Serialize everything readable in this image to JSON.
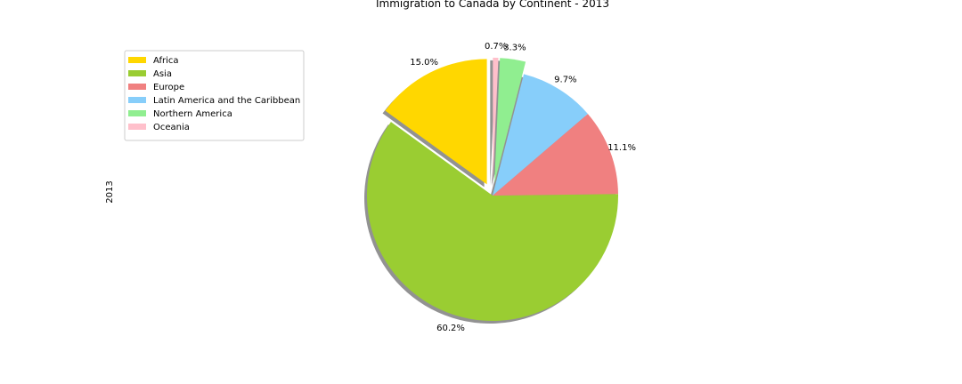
{
  "chart_data": {
    "type": "pie",
    "title": "Immigration to Canada by Continent - 2013",
    "ylabel": "2013",
    "start_angle_deg": 90,
    "shadow": true,
    "legend_position": "upper-left",
    "slices": [
      {
        "label": "Africa",
        "percent": 15.0,
        "pct_label": "15.0%",
        "color": "#FFD700",
        "explode": 0.1
      },
      {
        "label": "Asia",
        "percent": 60.2,
        "pct_label": "60.2%",
        "color": "#9ACD32",
        "explode": 0.0
      },
      {
        "label": "Europe",
        "percent": 11.1,
        "pct_label": "11.1%",
        "color": "#F08080",
        "explode": 0.0
      },
      {
        "label": "Latin America and the Caribbean",
        "percent": 9.7,
        "pct_label": "9.7%",
        "color": "#87CEFA",
        "explode": 0.0
      },
      {
        "label": "Northern America",
        "percent": 3.3,
        "pct_label": "3.3%",
        "color": "#90EE90",
        "explode": 0.1
      },
      {
        "label": "Oceania",
        "percent": 0.7,
        "pct_label": "0.7%",
        "color": "#FFC0CB",
        "explode": 0.1
      }
    ]
  }
}
